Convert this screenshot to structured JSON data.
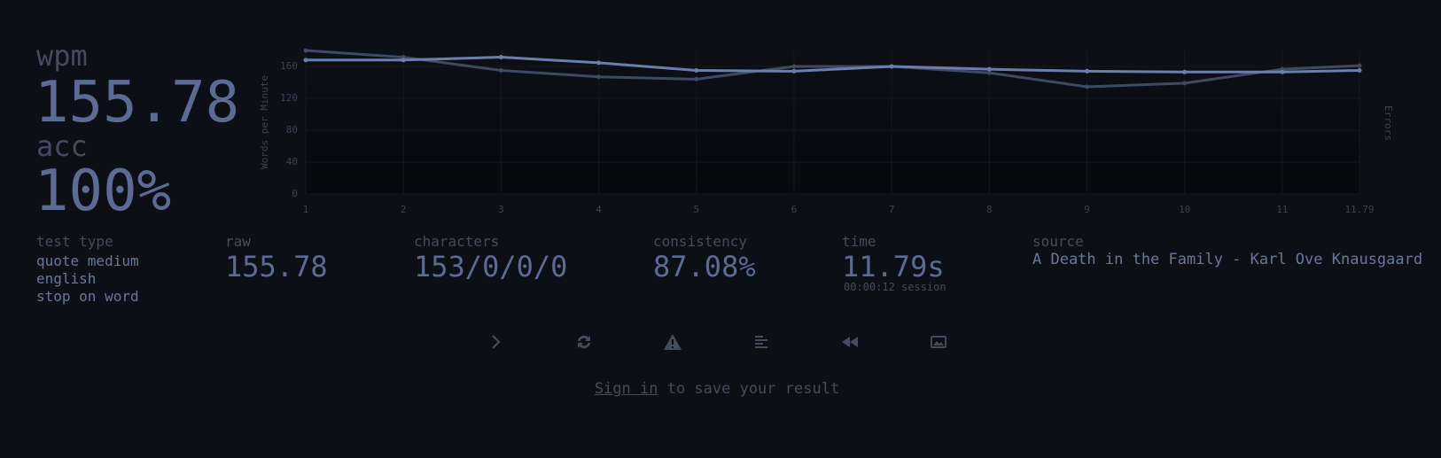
{
  "stats": {
    "wpm_label": "wpm",
    "wpm": "155.78",
    "acc_label": "acc",
    "acc": "100%"
  },
  "chart_data": {
    "type": "line",
    "y_label": "Words per Minute",
    "y2_label": "Errors",
    "x": [
      1,
      2,
      3,
      4,
      5,
      6,
      7,
      8,
      9,
      10,
      11,
      11.79
    ],
    "xlim": [
      1,
      11.79
    ],
    "xticks": [
      1,
      2,
      3,
      4,
      5,
      6,
      7,
      8,
      9,
      10,
      11,
      11.79
    ],
    "ylim": [
      0,
      180
    ],
    "yticks": [
      0,
      40,
      80,
      120,
      160
    ],
    "grid": true,
    "series": [
      {
        "color": "#3e4a63",
        "values": [
          180,
          171.6,
          155,
          147,
          144,
          160,
          160,
          152,
          134.5,
          139,
          156.5,
          161
        ]
      },
      {
        "color": "#6b7fad",
        "values": [
          168,
          168,
          171.6,
          164.6,
          155,
          154,
          160,
          156.5,
          154,
          153,
          153,
          155
        ]
      }
    ]
  },
  "details": {
    "test_type": {
      "label": "test type",
      "lines": [
        "quote medium",
        "english",
        "stop on word"
      ]
    },
    "raw": {
      "label": "raw",
      "value": "155.78"
    },
    "characters": {
      "label": "characters",
      "value": "153/0/0/0"
    },
    "consistency": {
      "label": "consistency",
      "value": "87.08%"
    },
    "time": {
      "label": "time",
      "value": "11.79s",
      "note": "00:00:12 session"
    },
    "source": {
      "label": "source",
      "value": "A Death in the Family - Karl Ove Knausgaard"
    }
  },
  "footer": {
    "link": "Sign in",
    "text": " to save your result"
  }
}
